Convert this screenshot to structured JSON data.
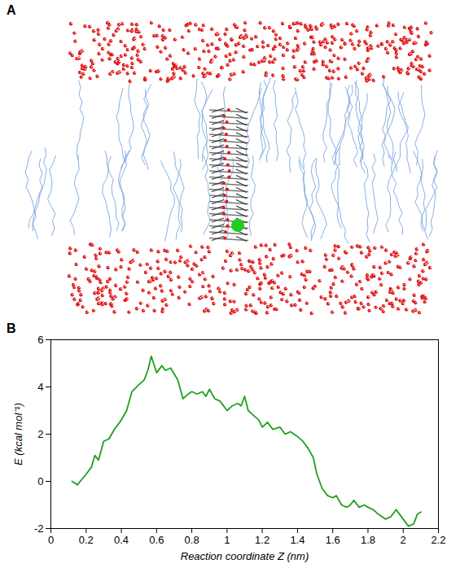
{
  "panel_labels": [
    "A",
    "B"
  ],
  "chart_data": {
    "type": "line",
    "xlabel": "Reaction coordinate Z (nm)",
    "ylabel": "E (kcal mol⁻¹)",
    "color": "#1ea01e",
    "xlim": [
      0,
      2.2
    ],
    "ylim": [
      -2,
      6
    ],
    "xticks": [
      0,
      0.2,
      0.4,
      0.6,
      0.8,
      1,
      1.2,
      1.4,
      1.6,
      1.8,
      2,
      2.2
    ],
    "yticks": [
      -2,
      0,
      2,
      4,
      6
    ],
    "x": [
      0.12,
      0.15,
      0.2,
      0.23,
      0.25,
      0.27,
      0.3,
      0.33,
      0.36,
      0.4,
      0.43,
      0.46,
      0.5,
      0.53,
      0.55,
      0.57,
      0.6,
      0.63,
      0.65,
      0.68,
      0.72,
      0.75,
      0.78,
      0.8,
      0.83,
      0.86,
      0.88,
      0.9,
      0.93,
      0.96,
      1.0,
      1.03,
      1.06,
      1.08,
      1.1,
      1.12,
      1.15,
      1.18,
      1.2,
      1.23,
      1.26,
      1.3,
      1.33,
      1.36,
      1.4,
      1.43,
      1.46,
      1.49,
      1.51,
      1.54,
      1.57,
      1.6,
      1.62,
      1.65,
      1.68,
      1.7,
      1.72,
      1.75,
      1.78,
      1.8,
      1.83,
      1.86,
      1.9,
      1.93,
      1.96,
      1.98,
      2.0,
      2.03,
      2.06,
      2.08,
      2.1
    ],
    "values": [
      0,
      -0.15,
      0.3,
      0.6,
      1.1,
      0.9,
      1.7,
      1.8,
      2.2,
      2.6,
      3.0,
      3.8,
      4.1,
      4.3,
      4.7,
      5.3,
      4.6,
      4.9,
      4.7,
      4.8,
      4.3,
      3.5,
      3.7,
      3.8,
      3.7,
      3.8,
      3.6,
      3.9,
      3.5,
      3.4,
      3.0,
      3.2,
      3.3,
      3.2,
      3.6,
      3.0,
      2.8,
      2.6,
      2.3,
      2.5,
      2.2,
      2.3,
      2.0,
      2.1,
      1.9,
      1.7,
      1.4,
      1.0,
      0.3,
      -0.3,
      -0.6,
      -0.7,
      -0.6,
      -1.0,
      -1.1,
      -1.0,
      -0.8,
      -1.1,
      -1.0,
      -1.1,
      -1.2,
      -1.4,
      -1.6,
      -1.5,
      -1.2,
      -1.4,
      -1.6,
      -1.9,
      -1.8,
      -1.4,
      -1.3
    ],
    "grid": false
  }
}
